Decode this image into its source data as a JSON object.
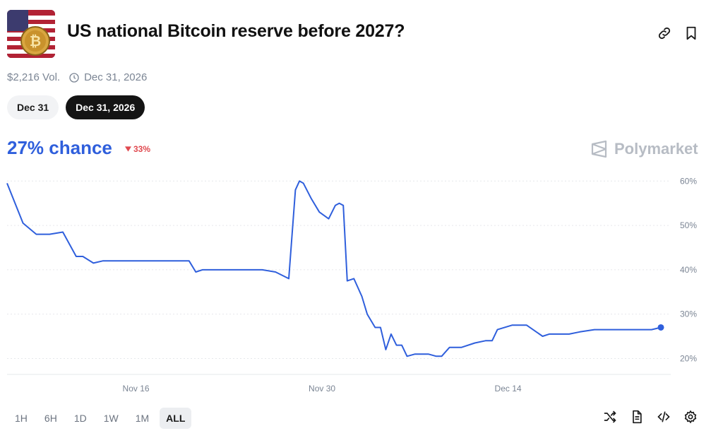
{
  "market": {
    "title": "US national Bitcoin reserve before 2027?",
    "volume": "$2,216 Vol.",
    "end_date": "Dec 31, 2026"
  },
  "date_tabs": [
    {
      "label": "Dec 31",
      "active": false
    },
    {
      "label": "Dec 31, 2026",
      "active": true
    }
  ],
  "odds": {
    "chance": "27% chance",
    "change": "33%",
    "change_direction": "down"
  },
  "brand": {
    "name": "Polymarket"
  },
  "ranges": [
    "1H",
    "6H",
    "1D",
    "1W",
    "1M",
    "ALL"
  ],
  "active_range": "ALL",
  "icons": {
    "header": [
      "link-icon",
      "bookmark-icon"
    ],
    "footer": [
      "shuffle-icon",
      "document-icon",
      "embed-icon",
      "settings-icon"
    ]
  },
  "colors": {
    "accent": "#2f5fdc",
    "negative": "#e0494f",
    "active_pill": "#141414"
  },
  "chart_data": {
    "type": "line",
    "x_tick_labels": [
      "Nov 16",
      "Nov 30",
      "Dec 14"
    ],
    "x_ticks_day": [
      16,
      30,
      44
    ],
    "y_tick_labels": [
      "60%",
      "50%",
      "40%",
      "30%",
      "20%"
    ],
    "y_ticks": [
      60,
      50,
      40,
      30,
      20
    ],
    "ylim": [
      18,
      61
    ],
    "xlim": [
      6.3,
      55.5
    ],
    "grid": true,
    "series": [
      {
        "x": [
          6.3,
          7.5,
          8.5,
          9.5,
          10.5,
          11.5,
          12.0,
          12.8,
          13.5,
          14.5,
          15.5,
          17,
          19,
          20,
          20.5,
          21,
          22,
          25.5,
          26.5,
          27.5,
          28,
          28.3,
          28.6,
          29.2,
          29.8,
          30.5,
          31,
          31.3,
          31.6,
          31.9,
          32.4,
          33.0,
          33.4,
          34.0,
          34.4,
          34.8,
          35.2,
          35.6,
          36.0,
          36.4,
          37.0,
          38.0,
          38.6,
          39.0,
          39.6,
          40.5,
          41.5,
          42.3,
          42.8,
          43.2,
          44.3,
          44.6,
          45.4,
          46.6,
          47.1,
          48.1,
          48.6,
          49.4,
          50.5,
          51.4,
          52.8,
          54.8,
          55.5
        ],
        "values": [
          59.5,
          50.5,
          48,
          48,
          48.5,
          43,
          43,
          41.5,
          42,
          42,
          42,
          42,
          42,
          42,
          39.5,
          40,
          40,
          40,
          39.5,
          38,
          58,
          60,
          59.5,
          56,
          53,
          51.5,
          54.5,
          55,
          54.5,
          37.5,
          38,
          34,
          30,
          27,
          27,
          22,
          25.5,
          23,
          23,
          20.5,
          21,
          21,
          20.5,
          20.5,
          22.5,
          22.5,
          23.5,
          24,
          24,
          26.5,
          27.5,
          27.5,
          27.5,
          25,
          25.5,
          25.5,
          25.5,
          26,
          26.5,
          26.5,
          26.5,
          26.5,
          27
        ]
      }
    ]
  }
}
